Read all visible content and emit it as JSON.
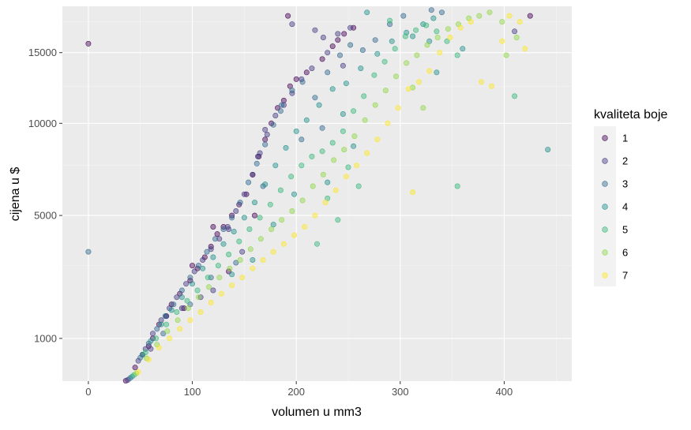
{
  "chart_data": {
    "type": "scatter",
    "xlabel": "volumen u mm3",
    "ylabel": "cijena u $",
    "xlim": [
      -25,
      465
    ],
    "ylim": [
      326,
      18823
    ],
    "x_ticks": [
      0,
      100,
      200,
      300,
      400
    ],
    "y_ticks": [
      1000,
      5000,
      10000,
      15000
    ],
    "y_scale": "sqrt",
    "grid": true,
    "legend": {
      "title": "kvaliteta boje",
      "position": "right",
      "entries": [
        "1",
        "2",
        "3",
        "4",
        "5",
        "6",
        "7"
      ]
    },
    "colors": [
      "#440154",
      "#443A83",
      "#31688E",
      "#21908C",
      "#35B779",
      "#8FD744",
      "#FDE725"
    ],
    "point_alpha": 0.45,
    "series": [
      {
        "name": "1",
        "points": [
          [
            36,
            330
          ],
          [
            45,
            500
          ],
          [
            52,
            700
          ],
          [
            58,
            850
          ],
          [
            62,
            1000
          ],
          [
            68,
            1300
          ],
          [
            75,
            1500
          ],
          [
            80,
            1800
          ],
          [
            88,
            2100
          ],
          [
            92,
            1700
          ],
          [
            98,
            2500
          ],
          [
            105,
            2900
          ],
          [
            112,
            3300
          ],
          [
            118,
            3700
          ],
          [
            124,
            4200
          ],
          [
            130,
            4500
          ],
          [
            138,
            5000
          ],
          [
            145,
            5500
          ],
          [
            152,
            6000
          ],
          [
            158,
            7000
          ],
          [
            164,
            8000
          ],
          [
            170,
            9000
          ],
          [
            176,
            10000
          ],
          [
            182,
            11000
          ],
          [
            188,
            11500
          ],
          [
            194,
            12500
          ],
          [
            200,
            13000
          ],
          [
            210,
            13500
          ],
          [
            225,
            14500
          ],
          [
            235,
            15500
          ],
          [
            240,
            16000
          ],
          [
            246,
            16500
          ],
          [
            255,
            17000
          ],
          [
            192,
            18000
          ],
          [
            425,
            18000
          ],
          [
            0,
            15700
          ],
          [
            100,
            3000
          ],
          [
            120,
            4500
          ],
          [
            135,
            2800
          ],
          [
            160,
            5000
          ]
        ]
      },
      {
        "name": "2",
        "points": [
          [
            38,
            340
          ],
          [
            48,
            600
          ],
          [
            55,
            800
          ],
          [
            62,
            1100
          ],
          [
            70,
            1400
          ],
          [
            78,
            1700
          ],
          [
            85,
            2000
          ],
          [
            94,
            2400
          ],
          [
            102,
            2800
          ],
          [
            110,
            3200
          ],
          [
            118,
            3600
          ],
          [
            126,
            4000
          ],
          [
            134,
            4500
          ],
          [
            142,
            5200
          ],
          [
            150,
            6000
          ],
          [
            158,
            7000
          ],
          [
            165,
            8200
          ],
          [
            172,
            9300
          ],
          [
            180,
            10500
          ],
          [
            188,
            11200
          ],
          [
            196,
            12000
          ],
          [
            205,
            13000
          ],
          [
            215,
            13800
          ],
          [
            230,
            15000
          ],
          [
            240,
            16500
          ],
          [
            252,
            17000
          ],
          [
            196,
            17300
          ],
          [
            218,
            16800
          ],
          [
            226,
            16200
          ],
          [
            163,
            8000
          ],
          [
            170,
            9600
          ],
          [
            148,
            3500
          ],
          [
            135,
            4400
          ],
          [
            120,
            2200
          ],
          [
            108,
            2000
          ],
          [
            410,
            16700
          ],
          [
            60,
            800
          ],
          [
            75,
            1500
          ],
          [
            90,
            1700
          ],
          [
            245,
            14000
          ]
        ]
      },
      {
        "name": "3",
        "points": [
          [
            40,
            360
          ],
          [
            50,
            650
          ],
          [
            58,
            900
          ],
          [
            66,
            1200
          ],
          [
            74,
            1500
          ],
          [
            82,
            1800
          ],
          [
            90,
            2200
          ],
          [
            98,
            2600
          ],
          [
            106,
            3000
          ],
          [
            114,
            3500
          ],
          [
            122,
            4000
          ],
          [
            130,
            4400
          ],
          [
            138,
            4900
          ],
          [
            146,
            5600
          ],
          [
            154,
            6600
          ],
          [
            162,
            7600
          ],
          [
            170,
            8700
          ],
          [
            178,
            9900
          ],
          [
            186,
            11200
          ],
          [
            196,
            12200
          ],
          [
            206,
            12800
          ],
          [
            218,
            11700
          ],
          [
            230,
            13500
          ],
          [
            242,
            14800
          ],
          [
            252,
            15600
          ],
          [
            264,
            15200
          ],
          [
            276,
            16000
          ],
          [
            290,
            17300
          ],
          [
            303,
            18000
          ],
          [
            330,
            18500
          ],
          [
            340,
            18300
          ],
          [
            0,
            3500
          ],
          [
            205,
            9000
          ],
          [
            225,
            9700
          ],
          [
            185,
            10800
          ],
          [
            168,
            6400
          ],
          [
            142,
            3100
          ],
          [
            118,
            2600
          ],
          [
            98,
            1800
          ],
          [
            72,
            1100
          ]
        ]
      },
      {
        "name": "4",
        "points": [
          [
            42,
            380
          ],
          [
            52,
            700
          ],
          [
            60,
            950
          ],
          [
            70,
            1300
          ],
          [
            80,
            1650
          ],
          [
            90,
            2000
          ],
          [
            100,
            2400
          ],
          [
            110,
            2900
          ],
          [
            120,
            3300
          ],
          [
            130,
            3800
          ],
          [
            140,
            4300
          ],
          [
            150,
            4900
          ],
          [
            160,
            5600
          ],
          [
            170,
            6500
          ],
          [
            180,
            7500
          ],
          [
            190,
            8500
          ],
          [
            200,
            9500
          ],
          [
            210,
            10200
          ],
          [
            222,
            11200
          ],
          [
            235,
            12300
          ],
          [
            248,
            12700
          ],
          [
            262,
            13800
          ],
          [
            278,
            14900
          ],
          [
            292,
            15900
          ],
          [
            306,
            16600
          ],
          [
            322,
            17300
          ],
          [
            332,
            17800
          ],
          [
            312,
            16300
          ],
          [
            328,
            15900
          ],
          [
            335,
            13500
          ],
          [
            268,
            18300
          ],
          [
            442,
            8400
          ],
          [
            360,
            15300
          ],
          [
            245,
            10600
          ],
          [
            255,
            8600
          ],
          [
            230,
            6600
          ],
          [
            198,
            6000
          ],
          [
            178,
            4600
          ],
          [
            158,
            3200
          ],
          [
            138,
            2700
          ]
        ]
      },
      {
        "name": "5",
        "points": [
          [
            44,
            400
          ],
          [
            55,
            740
          ],
          [
            65,
            1000
          ],
          [
            75,
            1300
          ],
          [
            85,
            1600
          ],
          [
            95,
            1900
          ],
          [
            105,
            2200
          ],
          [
            115,
            2600
          ],
          [
            125,
            3000
          ],
          [
            135,
            3400
          ],
          [
            145,
            3900
          ],
          [
            155,
            4400
          ],
          [
            165,
            4900
          ],
          [
            175,
            5500
          ],
          [
            185,
            6200
          ],
          [
            195,
            6900
          ],
          [
            205,
            7500
          ],
          [
            215,
            8000
          ],
          [
            225,
            8300
          ],
          [
            235,
            8800
          ],
          [
            245,
            9500
          ],
          [
            255,
            10800
          ],
          [
            265,
            11800
          ],
          [
            275,
            13300
          ],
          [
            285,
            14300
          ],
          [
            295,
            15300
          ],
          [
            305,
            16300
          ],
          [
            315,
            16800
          ],
          [
            325,
            17200
          ],
          [
            335,
            16700
          ],
          [
            345,
            15900
          ],
          [
            355,
            14800
          ],
          [
            290,
            17600
          ],
          [
            410,
            11800
          ],
          [
            355,
            6400
          ],
          [
            240,
            4800
          ],
          [
            250,
            7400
          ],
          [
            260,
            6400
          ],
          [
            230,
            5800
          ],
          [
            220,
            3800
          ]
        ]
      },
      {
        "name": "6",
        "points": [
          [
            46,
            420
          ],
          [
            56,
            640
          ],
          [
            66,
            880
          ],
          [
            76,
            1150
          ],
          [
            86,
            1400
          ],
          [
            96,
            1700
          ],
          [
            106,
            2000
          ],
          [
            116,
            2300
          ],
          [
            126,
            2600
          ],
          [
            136,
            2900
          ],
          [
            146,
            3200
          ],
          [
            156,
            3600
          ],
          [
            166,
            4000
          ],
          [
            176,
            4400
          ],
          [
            186,
            4800
          ],
          [
            196,
            5200
          ],
          [
            206,
            5700
          ],
          [
            216,
            6400
          ],
          [
            226,
            7000
          ],
          [
            236,
            7800
          ],
          [
            246,
            8400
          ],
          [
            256,
            9200
          ],
          [
            266,
            10200
          ],
          [
            276,
            11200
          ],
          [
            286,
            12200
          ],
          [
            296,
            13200
          ],
          [
            306,
            14200
          ],
          [
            316,
            14800
          ],
          [
            326,
            15600
          ],
          [
            336,
            16200
          ],
          [
            346,
            16900
          ],
          [
            356,
            17300
          ],
          [
            366,
            17800
          ],
          [
            376,
            18000
          ],
          [
            386,
            18300
          ],
          [
            398,
            17500
          ],
          [
            402,
            14800
          ],
          [
            412,
            16200
          ],
          [
            312,
            12400
          ],
          [
            322,
            11000
          ]
        ]
      },
      {
        "name": "7",
        "points": [
          [
            48,
            440
          ],
          [
            58,
            620
          ],
          [
            68,
            820
          ],
          [
            78,
            1000
          ],
          [
            88,
            1200
          ],
          [
            98,
            1400
          ],
          [
            108,
            1600
          ],
          [
            118,
            1850
          ],
          [
            128,
            2100
          ],
          [
            138,
            2350
          ],
          [
            148,
            2600
          ],
          [
            158,
            2900
          ],
          [
            168,
            3200
          ],
          [
            178,
            3500
          ],
          [
            188,
            3800
          ],
          [
            198,
            4150
          ],
          [
            208,
            4500
          ],
          [
            218,
            5000
          ],
          [
            228,
            5600
          ],
          [
            238,
            6200
          ],
          [
            248,
            6900
          ],
          [
            258,
            7500
          ],
          [
            268,
            8200
          ],
          [
            278,
            9000
          ],
          [
            288,
            10000
          ],
          [
            298,
            11000
          ],
          [
            308,
            12300
          ],
          [
            318,
            12800
          ],
          [
            328,
            13600
          ],
          [
            338,
            15000
          ],
          [
            348,
            16200
          ],
          [
            358,
            17000
          ],
          [
            368,
            17500
          ],
          [
            378,
            12800
          ],
          [
            388,
            12500
          ],
          [
            398,
            15900
          ],
          [
            405,
            18000
          ],
          [
            415,
            17500
          ],
          [
            420,
            15300
          ],
          [
            312,
            6100
          ]
        ]
      }
    ]
  }
}
